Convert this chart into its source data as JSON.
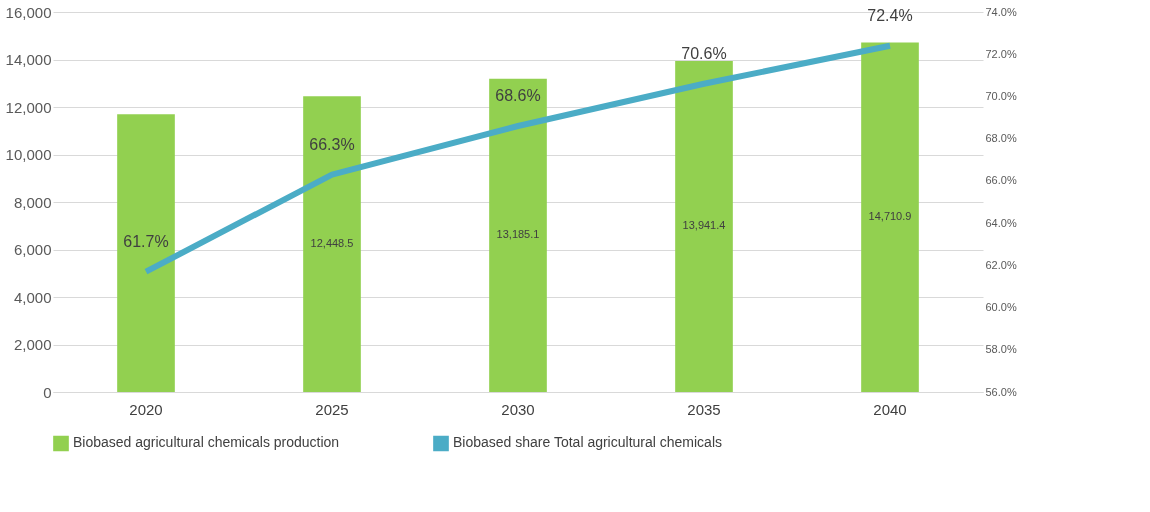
{
  "chart_data": {
    "type": "bar",
    "categories": [
      "2020",
      "2025",
      "2030",
      "2035",
      "2040"
    ],
    "series": [
      {
        "name": "Biobased agricultural chemicals production",
        "color": "#92d050",
        "values": [
          11700,
          12448.5,
          13185.1,
          13941.4,
          14710.9
        ],
        "value_labels": [
          null,
          "12,448.5",
          "13,185.1",
          "13,941.4",
          "14,710.9"
        ]
      },
      {
        "name": "Biobased  share Total agricultural chemicals",
        "type": "line",
        "axis": "y2",
        "color": "#4bacc6",
        "values": [
          61.7,
          66.3,
          68.6,
          70.6,
          72.4
        ],
        "value_labels": [
          "61.7%",
          "66.3%",
          "68.6%",
          "70.6%",
          "72.4%"
        ]
      }
    ],
    "ylim": [
      0,
      16000
    ],
    "yticks": [
      {
        "value": 0,
        "label": "0"
      },
      {
        "value": 2000,
        "label": "2,000"
      },
      {
        "value": 4000,
        "label": "4,000"
      },
      {
        "value": 6000,
        "label": "6,000"
      },
      {
        "value": 8000,
        "label": "8,000"
      },
      {
        "value": 10000,
        "label": "10,000"
      },
      {
        "value": 12000,
        "label": "12,000"
      },
      {
        "value": 14000,
        "label": "14,000"
      },
      {
        "value": 16000,
        "label": "16,000"
      }
    ],
    "y2lim": [
      56,
      74
    ],
    "y2ticks": [
      {
        "value": 56,
        "label": "56.0%"
      },
      {
        "value": 58,
        "label": "58.0%"
      },
      {
        "value": 60,
        "label": "60.0%"
      },
      {
        "value": 62,
        "label": "62.0%"
      },
      {
        "value": 64,
        "label": "64.0%"
      },
      {
        "value": 66,
        "label": "66.0%"
      },
      {
        "value": 68,
        "label": "68.0%"
      },
      {
        "value": 70,
        "label": "70.0%"
      },
      {
        "value": 72,
        "label": "72.0%"
      },
      {
        "value": 74,
        "label": "74.0%"
      }
    ],
    "grid": "y",
    "legend": "bottom"
  }
}
